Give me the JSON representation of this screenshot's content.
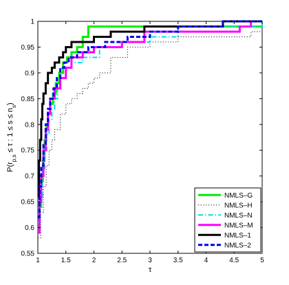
{
  "chart_data": {
    "type": "line",
    "title": "",
    "xlabel": "τ",
    "ylabel_parts": {
      "base": "P(r",
      "sub": "p,s",
      "mid": " ≤ τ : 1 ≤ s ≤ n",
      "sub2": "s",
      "end": ")"
    },
    "xlim": [
      1,
      5
    ],
    "ylim": [
      0.55,
      1
    ],
    "xticks": [
      1,
      1.5,
      2,
      2.5,
      3,
      3.5,
      4,
      4.5,
      5
    ],
    "xtick_labels": [
      "1",
      "1.5",
      "2",
      "2.5",
      "3",
      "3.5",
      "4",
      "4.5",
      "5"
    ],
    "yticks": [
      0.55,
      0.6,
      0.65,
      0.7,
      0.75,
      0.8,
      0.85,
      0.9,
      0.95,
      1
    ],
    "ytick_labels": [
      "0.55",
      "0.6",
      "0.65",
      "0.7",
      "0.75",
      "0.8",
      "0.85",
      "0.9",
      "0.95",
      "1"
    ],
    "grid": false,
    "legend_position": "bottom-right",
    "series": [
      {
        "name": "NMLS–G",
        "color": "#00ee00",
        "dash": "solid",
        "width": 3,
        "x": [
          1.0,
          1.03,
          1.06,
          1.09,
          1.12,
          1.15,
          1.18,
          1.22,
          1.27,
          1.32,
          1.38,
          1.45,
          1.52,
          1.6,
          1.7,
          1.8,
          1.9,
          5.0
        ],
        "y": [
          0.6,
          0.64,
          0.69,
          0.73,
          0.77,
          0.8,
          0.82,
          0.84,
          0.86,
          0.88,
          0.9,
          0.92,
          0.93,
          0.94,
          0.95,
          0.97,
          0.99,
          0.99
        ]
      },
      {
        "name": "NMLS–H",
        "color": "#333333",
        "dash": "dotted",
        "width": 1.2,
        "x": [
          1.0,
          1.05,
          1.1,
          1.15,
          1.2,
          1.25,
          1.3,
          1.4,
          1.5,
          1.6,
          1.7,
          1.8,
          1.9,
          2.0,
          2.1,
          2.3,
          2.6,
          3.0,
          3.5,
          4.8,
          5.0
        ],
        "y": [
          0.58,
          0.63,
          0.68,
          0.72,
          0.75,
          0.77,
          0.79,
          0.82,
          0.84,
          0.85,
          0.86,
          0.87,
          0.88,
          0.89,
          0.9,
          0.93,
          0.95,
          0.96,
          0.97,
          0.98,
          0.98
        ]
      },
      {
        "name": "NMLS–N",
        "color": "#00dddd",
        "dash": "dashdot",
        "width": 2,
        "x": [
          1.0,
          1.04,
          1.08,
          1.12,
          1.16,
          1.2,
          1.25,
          1.3,
          1.35,
          1.4,
          1.5,
          1.6,
          1.8,
          2.1,
          2.5,
          3.0,
          3.5,
          5.0
        ],
        "y": [
          0.61,
          0.66,
          0.71,
          0.75,
          0.78,
          0.81,
          0.83,
          0.85,
          0.87,
          0.89,
          0.91,
          0.92,
          0.93,
          0.95,
          0.96,
          0.97,
          0.99,
          1.0
        ]
      },
      {
        "name": "NMLS–M",
        "color": "#ff00ff",
        "dash": "solid",
        "width": 3,
        "x": [
          1.0,
          1.03,
          1.06,
          1.1,
          1.14,
          1.18,
          1.22,
          1.3,
          1.4,
          1.5,
          1.6,
          1.8,
          2.0,
          2.5,
          2.9,
          4.6,
          4.8,
          5.0
        ],
        "y": [
          0.59,
          0.65,
          0.7,
          0.75,
          0.79,
          0.82,
          0.85,
          0.87,
          0.89,
          0.91,
          0.93,
          0.94,
          0.95,
          0.96,
          0.98,
          0.99,
          1.0,
          1.0
        ]
      },
      {
        "name": "NMLS–1",
        "color": "#000000",
        "dash": "solid",
        "width": 3,
        "x": [
          1.0,
          1.02,
          1.04,
          1.06,
          1.08,
          1.1,
          1.14,
          1.18,
          1.25,
          1.3,
          1.38,
          1.45,
          1.5,
          1.6,
          2.0,
          2.3,
          2.9,
          3.5,
          4.3,
          5.0
        ],
        "y": [
          0.66,
          0.73,
          0.77,
          0.81,
          0.84,
          0.86,
          0.88,
          0.9,
          0.91,
          0.92,
          0.93,
          0.94,
          0.95,
          0.96,
          0.97,
          0.98,
          0.99,
          0.99,
          1.0,
          1.0
        ]
      },
      {
        "name": "NMLS–2",
        "color": "#0000ee",
        "dash": "dashed",
        "width": 3,
        "x": [
          1.0,
          1.03,
          1.06,
          1.1,
          1.14,
          1.18,
          1.22,
          1.28,
          1.34,
          1.4,
          1.47,
          1.55,
          1.7,
          1.9,
          2.2,
          2.6,
          3.0,
          3.5,
          4.3,
          5.0
        ],
        "y": [
          0.62,
          0.68,
          0.72,
          0.76,
          0.8,
          0.83,
          0.85,
          0.87,
          0.89,
          0.91,
          0.92,
          0.93,
          0.94,
          0.95,
          0.96,
          0.97,
          0.98,
          0.99,
          1.0,
          1.0
        ]
      }
    ]
  }
}
